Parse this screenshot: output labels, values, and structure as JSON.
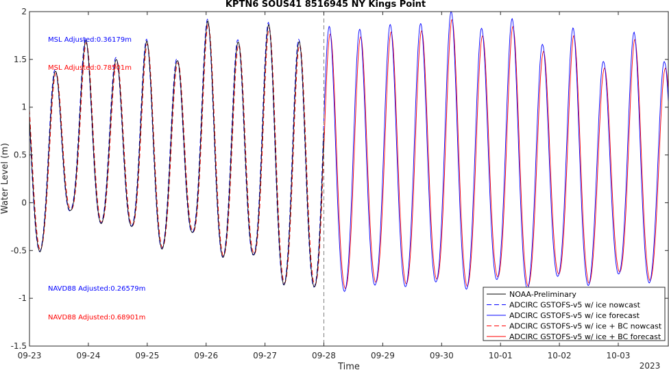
{
  "chart_data": {
    "type": "line",
    "title": "KPTN6 SOUS41 8516945 NY Kings Point",
    "xlabel": "Time",
    "ylabel": "Water Level (m)",
    "ylim": [
      -1.5,
      2
    ],
    "xlim": [
      0,
      10.85
    ],
    "y_ticks": [
      -1.5,
      -1,
      -0.5,
      0,
      0.5,
      1,
      1.5,
      2
    ],
    "x_tick_positions": [
      0,
      1,
      2,
      3,
      4,
      5,
      6,
      7,
      8,
      9,
      10
    ],
    "x_tick_labels": [
      "09-23",
      "09-24",
      "09-25",
      "09-26",
      "09-27",
      "09-28",
      "09-29",
      "09-30",
      "10-01",
      "10-02",
      "10-03"
    ],
    "x_year_label": "2023",
    "nowcast_end": 5,
    "grid": false,
    "legend_position": "bottom-right",
    "tide": {
      "period_days": 0.5175,
      "peak1": 0.44,
      "high_tides": [
        1.3,
        1.62,
        1.42,
        1.6,
        1.4,
        1.8,
        1.58,
        1.75,
        1.57,
        1.7,
        1.67,
        1.72,
        1.73,
        1.85,
        1.68,
        1.78,
        1.52,
        1.69,
        1.35,
        1.65,
        1.35,
        1.6
      ],
      "low_tides": [
        -0.6,
        -0.15,
        -0.3,
        -0.33,
        -0.58,
        -0.4,
        -0.68,
        -0.65,
        -0.98,
        -1.0,
        -1.05,
        -0.98,
        -1.0,
        -0.95,
        -1.03,
        -0.92,
        -1.02,
        -0.88,
        -0.98,
        -0.85,
        -0.95,
        -0.82
      ]
    },
    "series": [
      {
        "name": "NOAA-Preliminary",
        "color": "#000000",
        "dash": "solid",
        "range": [
          0,
          5
        ]
      },
      {
        "name": "ADCIRC GSTOFS-v5  w/ ice nowcast",
        "color": "#0000ff",
        "dash": "dashed",
        "range": [
          0,
          5
        ]
      },
      {
        "name": "ADCIRC GSTOFS-v5  w/ ice forecast",
        "color": "#0000ff",
        "dash": "solid",
        "range": [
          5,
          10.85
        ]
      },
      {
        "name": "ADCIRC GSTOFS-v5  w/ ice + BC nowcast",
        "color": "#ff0000",
        "dash": "dashed",
        "range": [
          0,
          5
        ]
      },
      {
        "name": "ADCIRC GSTOFS-v5  w/ ice + BC forecast",
        "color": "#ff0000",
        "dash": "solid",
        "range": [
          5,
          10.85
        ]
      }
    ],
    "annotations": [
      {
        "text": "MSL Adjusted:0.36179m",
        "color": "#0000ff"
      },
      {
        "text": "MSL Adjusted:0.78501m",
        "color": "#ff0000"
      },
      {
        "text": "NAVD88 Adjusted:0.26579m",
        "color": "#0000ff"
      },
      {
        "text": "NAVD88 Adjusted:0.68901m",
        "color": "#ff0000"
      }
    ]
  }
}
